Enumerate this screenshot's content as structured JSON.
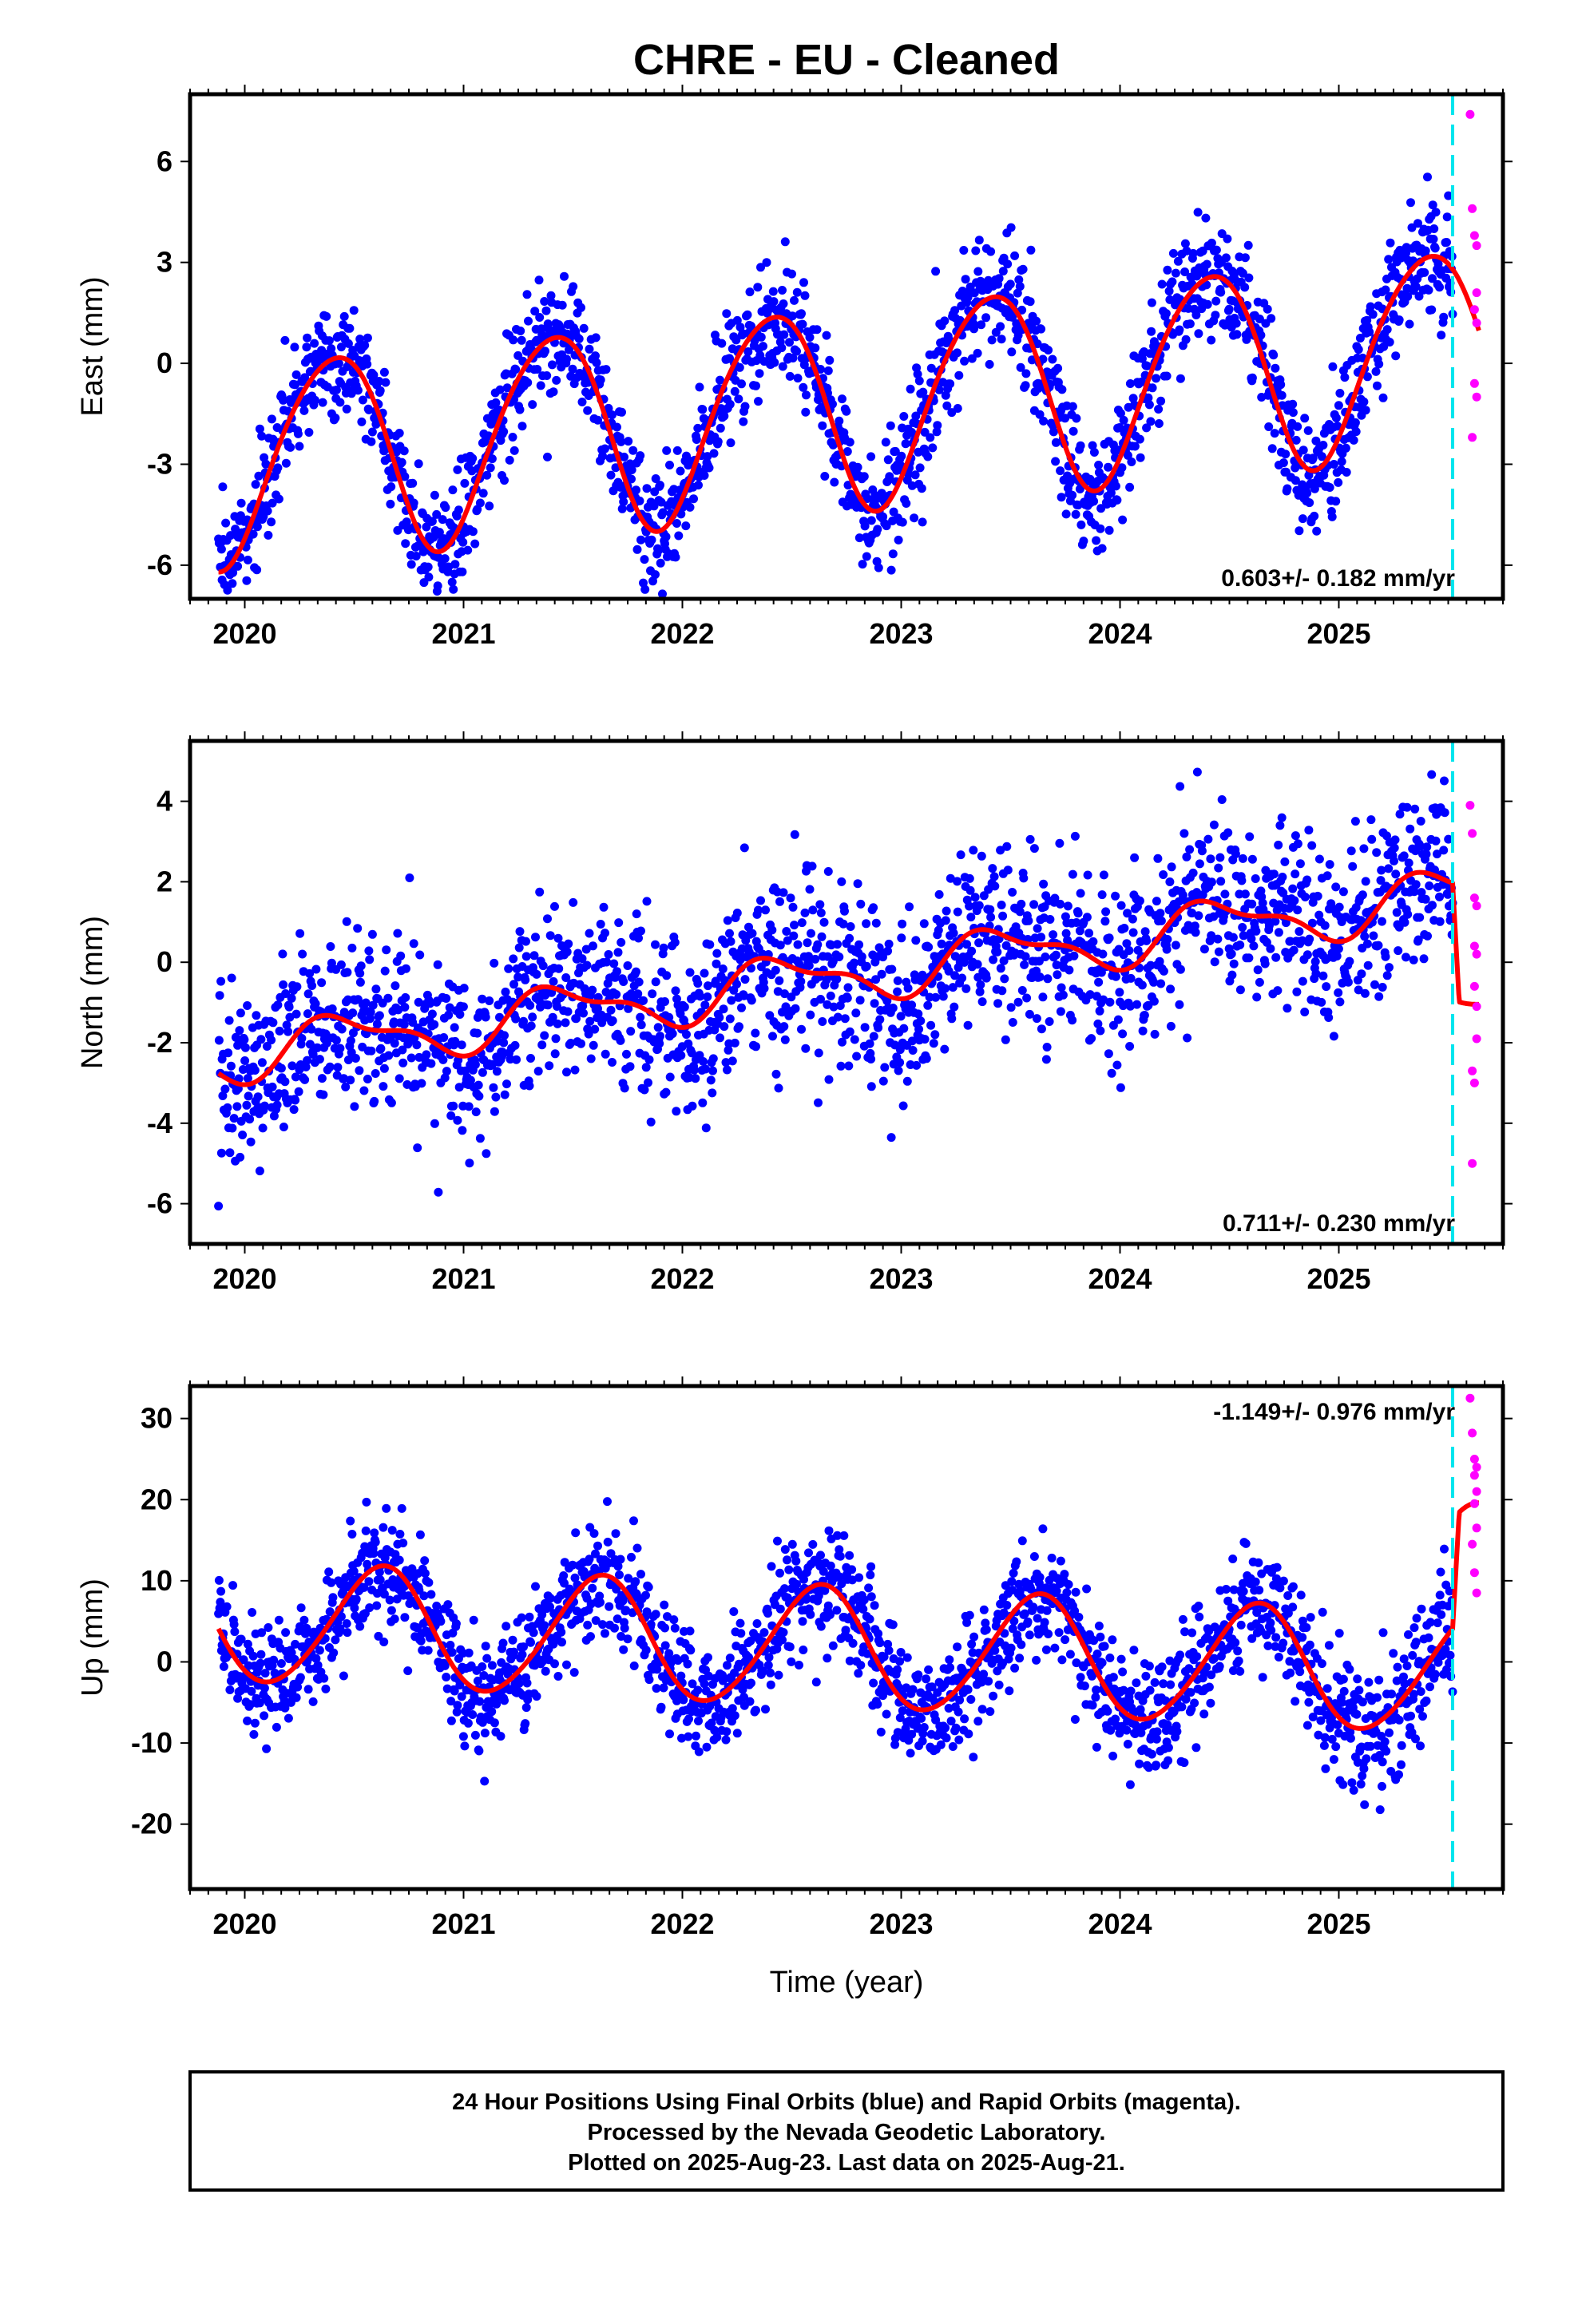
{
  "title": "CHRE  - EU - Cleaned",
  "x_axis_label": "Time (year)",
  "footer": {
    "line1": "24 Hour Positions Using Final Orbits (blue) and Rapid Orbits (magenta).",
    "line2": "Processed by the Nevada Geodetic Laboratory.",
    "line3": "Plotted on 2025-Aug-23. Last data on 2025-Aug-21."
  },
  "colors": {
    "final_orbits": "#0000ff",
    "rapid_orbits": "#ff00ff",
    "model_fit": "#ff0000",
    "event_line": "#00e5ee"
  },
  "chart_data": [
    {
      "type": "scatter",
      "panel": "east",
      "ylabel": "East (mm)",
      "xlim": [
        2019.75,
        2025.75
      ],
      "ylim": [
        -7,
        8
      ],
      "x_ticks": [
        2020,
        2021,
        2022,
        2023,
        2024,
        2025
      ],
      "y_ticks": [
        -6,
        -3,
        0,
        3,
        6
      ],
      "rate_label": "0.603+/- 0.182 mm/yr",
      "rate_position": "bottom-right",
      "grid": false,
      "event_line_x": 2025.52,
      "model": {
        "offset": -1.25,
        "trend": 0.603,
        "annual_amp": 3.0,
        "annual_peak_phase": 0.4,
        "semiannual_amp": 0.3,
        "semiannual_phase": 0.1,
        "step_after_event": 0,
        "scatter_sd": 0.9
      },
      "series": [
        {
          "name": "Final Orbits (blue)",
          "x_range": [
            2019.88,
            2025.52
          ],
          "style": "points"
        },
        {
          "name": "Rapid Orbits (magenta)",
          "x_range": [
            2025.52,
            2025.64
          ],
          "style": "points",
          "values": [
            [
              2025.6,
              7.4
            ],
            [
              2025.61,
              4.6
            ],
            [
              2025.62,
              3.8
            ],
            [
              2025.63,
              2.1
            ],
            [
              2025.62,
              1.6
            ],
            [
              2025.63,
              1.2
            ],
            [
              2025.62,
              -0.6
            ],
            [
              2025.63,
              -1.0
            ],
            [
              2025.61,
              -2.2
            ],
            [
              2025.63,
              3.5
            ]
          ]
        },
        {
          "name": "Model fit (red)",
          "style": "line"
        }
      ]
    },
    {
      "type": "scatter",
      "panel": "north",
      "ylabel": "North (mm)",
      "xlim": [
        2019.75,
        2025.75
      ],
      "ylim": [
        -7,
        5.5
      ],
      "x_ticks": [
        2020,
        2021,
        2022,
        2023,
        2024,
        2025
      ],
      "y_ticks": [
        -6,
        -4,
        -2,
        0,
        2,
        4
      ],
      "rate_label": "0.711+/- 0.230 mm/yr",
      "rate_position": "bottom-right",
      "grid": false,
      "event_line_x": 2025.52,
      "model": {
        "offset": -0.35,
        "trend": 0.711,
        "annual_amp": 0.6,
        "annual_peak_phase": 0.45,
        "semiannual_amp": 0.25,
        "semiannual_phase": 0.3,
        "step_after_event": -2.9,
        "scatter_sd": 1.1
      },
      "series": [
        {
          "name": "Final Orbits (blue)",
          "x_range": [
            2019.88,
            2025.52
          ],
          "style": "points"
        },
        {
          "name": "Rapid Orbits (magenta)",
          "x_range": [
            2025.52,
            2025.64
          ],
          "style": "points",
          "values": [
            [
              2025.6,
              3.9
            ],
            [
              2025.61,
              3.2
            ],
            [
              2025.62,
              1.6
            ],
            [
              2025.63,
              1.4
            ],
            [
              2025.62,
              0.4
            ],
            [
              2025.63,
              0.2
            ],
            [
              2025.62,
              -0.6
            ],
            [
              2025.63,
              -1.1
            ],
            [
              2025.63,
              -1.9
            ],
            [
              2025.61,
              -2.7
            ],
            [
              2025.62,
              -3.0
            ],
            [
              2025.61,
              -5.0
            ]
          ]
        },
        {
          "name": "Model fit (red)",
          "style": "line"
        }
      ]
    },
    {
      "type": "scatter",
      "panel": "up",
      "ylabel": "Up (mm)",
      "xlim": [
        2019.75,
        2025.75
      ],
      "ylim": [
        -28,
        34
      ],
      "x_ticks": [
        2020,
        2021,
        2022,
        2023,
        2024,
        2025
      ],
      "y_ticks": [
        -20,
        -10,
        0,
        10,
        20,
        30
      ],
      "rate_label": "-1.149+/- 0.976 mm/yr",
      "rate_position": "top-right",
      "grid": false,
      "event_line_x": 2025.52,
      "model": {
        "offset": 1.7,
        "trend": -1.149,
        "annual_amp": 7.4,
        "annual_peak_phase": 0.62,
        "semiannual_amp": 0.6,
        "semiannual_phase": 0.2,
        "step_after_event": 13.5,
        "scatter_sd": 3.6
      },
      "series": [
        {
          "name": "Final Orbits (blue)",
          "x_range": [
            2019.88,
            2025.52
          ],
          "style": "points"
        },
        {
          "name": "Rapid Orbits (magenta)",
          "x_range": [
            2025.52,
            2025.64
          ],
          "style": "points",
          "values": [
            [
              2025.6,
              32.5
            ],
            [
              2025.61,
              28.2
            ],
            [
              2025.62,
              25.0
            ],
            [
              2025.63,
              24.0
            ],
            [
              2025.62,
              23.0
            ],
            [
              2025.63,
              21.0
            ],
            [
              2025.62,
              19.5
            ],
            [
              2025.63,
              16.5
            ],
            [
              2025.61,
              14.5
            ],
            [
              2025.62,
              11.0
            ],
            [
              2025.63,
              8.5
            ]
          ]
        },
        {
          "name": "Model fit (red)",
          "style": "line"
        }
      ]
    }
  ]
}
